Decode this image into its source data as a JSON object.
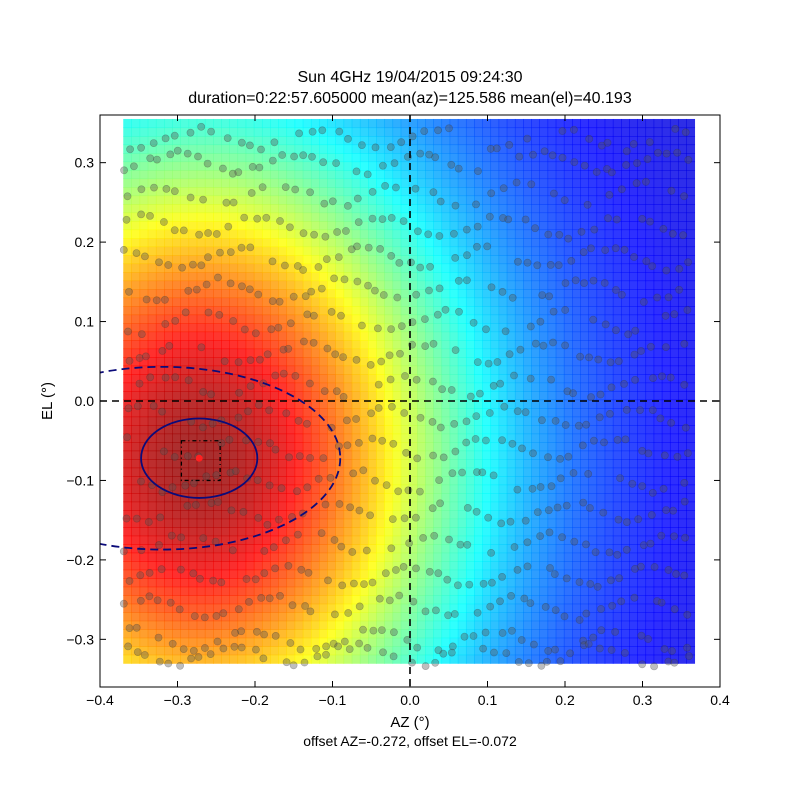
{
  "chart_data": {
    "type": "heatmap",
    "title_line1": "Sun 4GHz 19/04/2015 09:24:30",
    "title_line2": "duration=0:22:57.605000 mean(az)=125.586 mean(el)=40.193",
    "xlabel": "AZ (°)",
    "ylabel": "EL (°)",
    "footer": "offset AZ=-0.272, offset EL=-0.072",
    "xlim": [
      -0.4,
      0.4
    ],
    "ylim": [
      -0.36,
      0.36
    ],
    "xticks": [
      -0.4,
      -0.3,
      -0.2,
      -0.1,
      0.0,
      0.1,
      0.2,
      0.3,
      0.4
    ],
    "xtick_labels": [
      "−0.4",
      "−0.3",
      "−0.2",
      "−0.1",
      "0.0",
      "0.1",
      "0.2",
      "0.3",
      "0.4"
    ],
    "yticks": [
      -0.3,
      -0.2,
      -0.1,
      0.0,
      0.1,
      0.2,
      0.3
    ],
    "ytick_labels": [
      "−0.3",
      "−0.2",
      "−0.1",
      "0.0",
      "0.1",
      "0.2",
      "0.3"
    ],
    "heatmap": {
      "colormap": "jet",
      "x_range": [
        -0.37,
        0.367
      ],
      "y_range": [
        -0.33,
        0.355
      ],
      "peak": [
        -0.272,
        -0.072
      ],
      "sigma_az": 0.25,
      "sigma_el": 0.3
    },
    "fitted_center": [
      -0.272,
      -0.072
    ],
    "inner_ellipse": {
      "center": [
        -0.272,
        -0.072
      ],
      "rx": 0.075,
      "ry": 0.05
    },
    "outer_ellipse": {
      "center": [
        -0.32,
        -0.072
      ],
      "rx": 0.23,
      "ry": 0.115
    },
    "box": {
      "x": [
        -0.295,
        -0.245
      ],
      "y": [
        -0.1,
        -0.05
      ]
    },
    "crosshair": [
      0.0,
      0.0
    ],
    "scan_points_x_range": [
      -0.37,
      0.367
    ],
    "scan_points_y_range": [
      -0.33,
      0.355
    ],
    "scan_lines_el": [
      0.33,
      0.3,
      0.26,
      0.22,
      0.18,
      0.14,
      0.1,
      0.06,
      0.02,
      -0.02,
      -0.06,
      -0.1,
      -0.14,
      -0.18,
      -0.22,
      -0.26,
      -0.3,
      -0.32
    ]
  }
}
